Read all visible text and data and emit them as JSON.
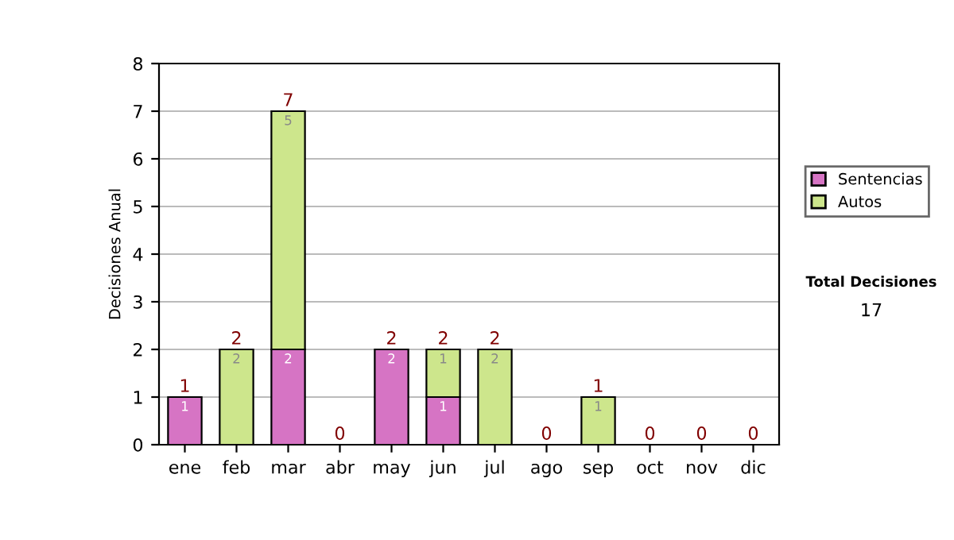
{
  "chart_data": {
    "type": "bar",
    "stacked": true,
    "ylabel": "Decisiones Anual",
    "categories": [
      "ene",
      "feb",
      "mar",
      "abr",
      "may",
      "jun",
      "jul",
      "ago",
      "sep",
      "oct",
      "nov",
      "dic"
    ],
    "series": [
      {
        "name": "Sentencias",
        "color": "#d674c4",
        "values": [
          1,
          0,
          2,
          0,
          2,
          1,
          0,
          0,
          0,
          0,
          0,
          0
        ],
        "value_labels": [
          "1",
          null,
          "2",
          null,
          "2",
          "1",
          null,
          null,
          null,
          null,
          null,
          null
        ]
      },
      {
        "name": "Autos",
        "color": "#cde68c",
        "values": [
          0,
          2,
          5,
          0,
          0,
          1,
          2,
          0,
          1,
          0,
          0,
          0
        ],
        "value_labels": [
          null,
          "2",
          "5",
          null,
          null,
          "1",
          "2",
          null,
          "1",
          null,
          null,
          null
        ]
      }
    ],
    "totals": [
      "1",
      "2",
      "7",
      "0",
      "2",
      "2",
      "2",
      "0",
      "1",
      "0",
      "0",
      "0"
    ],
    "ylim": [
      0,
      8
    ],
    "yticks": [
      0,
      1,
      2,
      3,
      4,
      5,
      6,
      7,
      8
    ],
    "grid": "y",
    "legend": "right",
    "annotations": [
      "Total Decisiones",
      "17"
    ]
  }
}
